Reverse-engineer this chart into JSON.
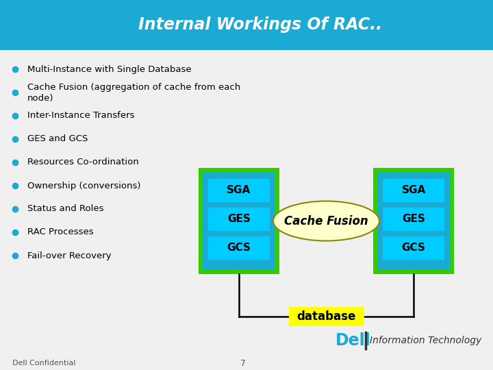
{
  "title": "Internal Workings Of RAC..",
  "title_bg_color": "#1baad4",
  "title_text_color": "#ffffff",
  "bg_color": "#f0f0f0",
  "bullet_points": [
    "Multi-Instance with Single Database",
    "Cache Fusion (aggregation of cache from each\nnode)",
    "Inter-Instance Transfers",
    "GES and GCS",
    "Resources Co-ordination",
    "Ownership (conversions)",
    "Status and Roles",
    "RAC Processes",
    "Fail-over Recovery"
  ],
  "bullet_color": "#1baad4",
  "bullet_text_color": "#000000",
  "outer_box_color": "#33cc00",
  "inner_box_color": "#1baad4",
  "sga_ges_gcs_text_color": "#000000",
  "sga_ges_gcs_bg": "#00ccff",
  "ellipse_fill": "#ffffcc",
  "ellipse_edge": "#888800",
  "cache_fusion_text_color": "#000000",
  "database_bg": "#ffff00",
  "database_text_color": "#000000",
  "footer_text": "Dell Confidential",
  "footer_number": "7",
  "dell_text_color": "#1baad4",
  "line_color": "#000000"
}
